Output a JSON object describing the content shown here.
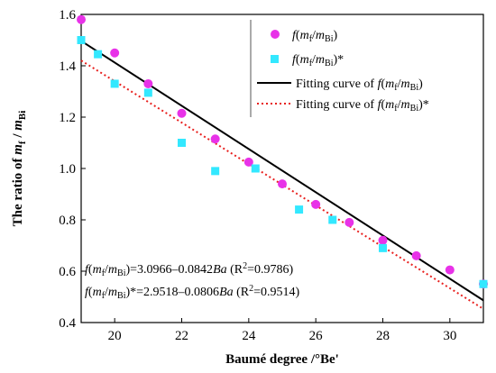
{
  "chart_data": {
    "type": "scatter",
    "xlabel": "Baumé degree /°Be'",
    "ylabel": "The ratio of m_f / m_Bi",
    "xlim": [
      19,
      31
    ],
    "ylim": [
      0.4,
      1.6
    ],
    "xticks": [
      "20",
      "22",
      "24",
      "26",
      "28",
      "30"
    ],
    "yticks": [
      "0.4",
      "0.6",
      "0.8",
      "1.0",
      "1.2",
      "1.4",
      "1.6"
    ],
    "grid": false,
    "legend_position": "top-right",
    "series": [
      {
        "name": "f(m_f/m_Bi)",
        "marker": "circle",
        "color": "#e832e8",
        "x": [
          19,
          20,
          21,
          22,
          23,
          24,
          25,
          26,
          27,
          28,
          29,
          30,
          31
        ],
        "y": [
          1.58,
          1.45,
          1.33,
          1.215,
          1.115,
          1.025,
          0.94,
          0.86,
          0.79,
          0.72,
          0.66,
          0.605,
          0.55
        ]
      },
      {
        "name": "f(m_f/m_Bi)*",
        "marker": "square",
        "color": "#33e8ff",
        "x": [
          19,
          19.5,
          20,
          21,
          22,
          23,
          24.2,
          25.5,
          26.5,
          28,
          31
        ],
        "y": [
          1.5,
          1.445,
          1.33,
          1.295,
          1.1,
          0.99,
          1.0,
          0.84,
          0.8,
          0.69,
          0.55
        ]
      }
    ],
    "fit_lines": [
      {
        "name": "Fitting curve of f(m_f/m_Bi)",
        "style": "solid",
        "color": "#000000",
        "intercept": 3.0966,
        "slope": -0.0842
      },
      {
        "name": "Fitting curve of f(m_f/m_Bi)*",
        "style": "dotted",
        "color": "#e8201e",
        "intercept": 2.9518,
        "slope": -0.0806
      }
    ],
    "annotations": [
      "f(m_f/m_Bi)=3.0966–0.0842Ba  (R2=0.9786)",
      "f(m_f/m_Bi)*=2.9518–0.0806Ba  (R2=0.9514)"
    ]
  }
}
